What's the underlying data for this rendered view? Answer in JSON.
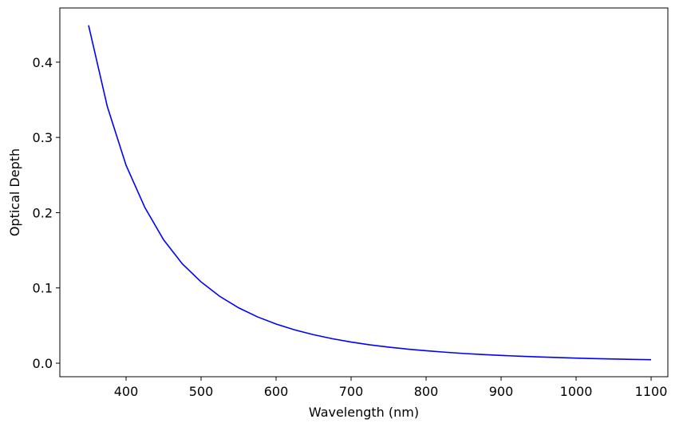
{
  "chart_data": {
    "type": "line",
    "x_label": "Wavelength (nm)",
    "y_label": "Optical Depth",
    "x": [
      350,
      375,
      400,
      425,
      450,
      475,
      500,
      525,
      550,
      575,
      600,
      625,
      650,
      675,
      700,
      725,
      750,
      775,
      800,
      825,
      850,
      875,
      900,
      925,
      950,
      975,
      1000,
      1025,
      1050,
      1075,
      1100
    ],
    "values": [
      0.449,
      0.341,
      0.263,
      0.207,
      0.164,
      0.132,
      0.108,
      0.0887,
      0.0736,
      0.0616,
      0.052,
      0.0442,
      0.0378,
      0.0325,
      0.0281,
      0.0244,
      0.0213,
      0.0187,
      0.0165,
      0.0146,
      0.0129,
      0.0115,
      0.0103,
      0.0092,
      0.0083,
      0.0075,
      0.0067,
      0.0061,
      0.0055,
      0.005,
      0.0046
    ],
    "color": "#0000ff",
    "xlim": [
      311.7,
      1122.3
    ],
    "ylim": [
      -0.018,
      0.472
    ],
    "xticks": [
      400,
      500,
      600,
      700,
      800,
      900,
      1000,
      1100
    ],
    "yticks": [
      {
        "value": 0,
        "label": "0.0"
      },
      0.1,
      0.2,
      0.3,
      0.4
    ],
    "grid": false
  }
}
